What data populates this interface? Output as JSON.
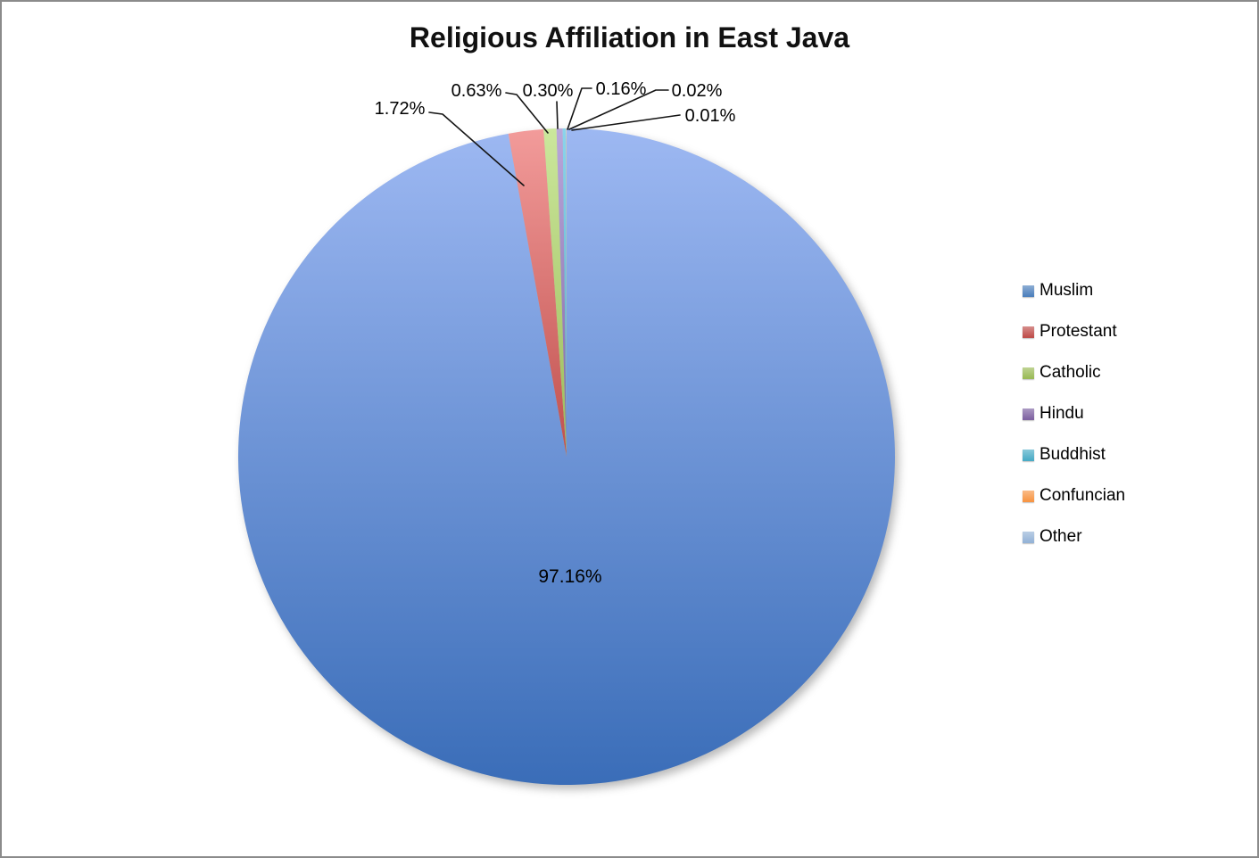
{
  "window": {
    "background": "#ffffff",
    "border_color": "#8b8b8b"
  },
  "chart_data": {
    "type": "pie",
    "title": "Religious Affiliation in East Java",
    "categories": [
      "Muslim",
      "Protestant",
      "Catholic",
      "Hindu",
      "Buddhist",
      "Confuncian",
      "Other"
    ],
    "values": [
      97.16,
      1.72,
      0.63,
      0.3,
      0.16,
      0.02,
      0.01
    ],
    "data_labels": [
      "97.16%",
      "1.72%",
      "0.63%",
      "0.30%",
      "0.16%",
      "0.02%",
      "0.01%"
    ],
    "colors": [
      "#4F81BD",
      "#C0504D",
      "#9BBB59",
      "#8064A2",
      "#4BACC6",
      "#F79646",
      "#95B3D7"
    ],
    "colors_gradient_top": [
      "#9DB8F2",
      "#F29B9A",
      "#CBE79C",
      "#B9A8DB",
      "#8AD4EC",
      "#FBBF8E",
      "#C4D6F4"
    ],
    "colors_gradient_bottom": [
      "#3A6DB8",
      "#C0504D",
      "#9BBB59",
      "#8064A2",
      "#4BACC6",
      "#F79646",
      "#95B3D7"
    ],
    "legend_position": "right",
    "legend_entries": [
      "Muslim",
      "Protestant",
      "Catholic",
      "Hindu",
      "Buddhist",
      "Confuncian",
      "Other"
    ],
    "start_angle_deg": 0,
    "direction": "clockwise",
    "grid": false
  }
}
